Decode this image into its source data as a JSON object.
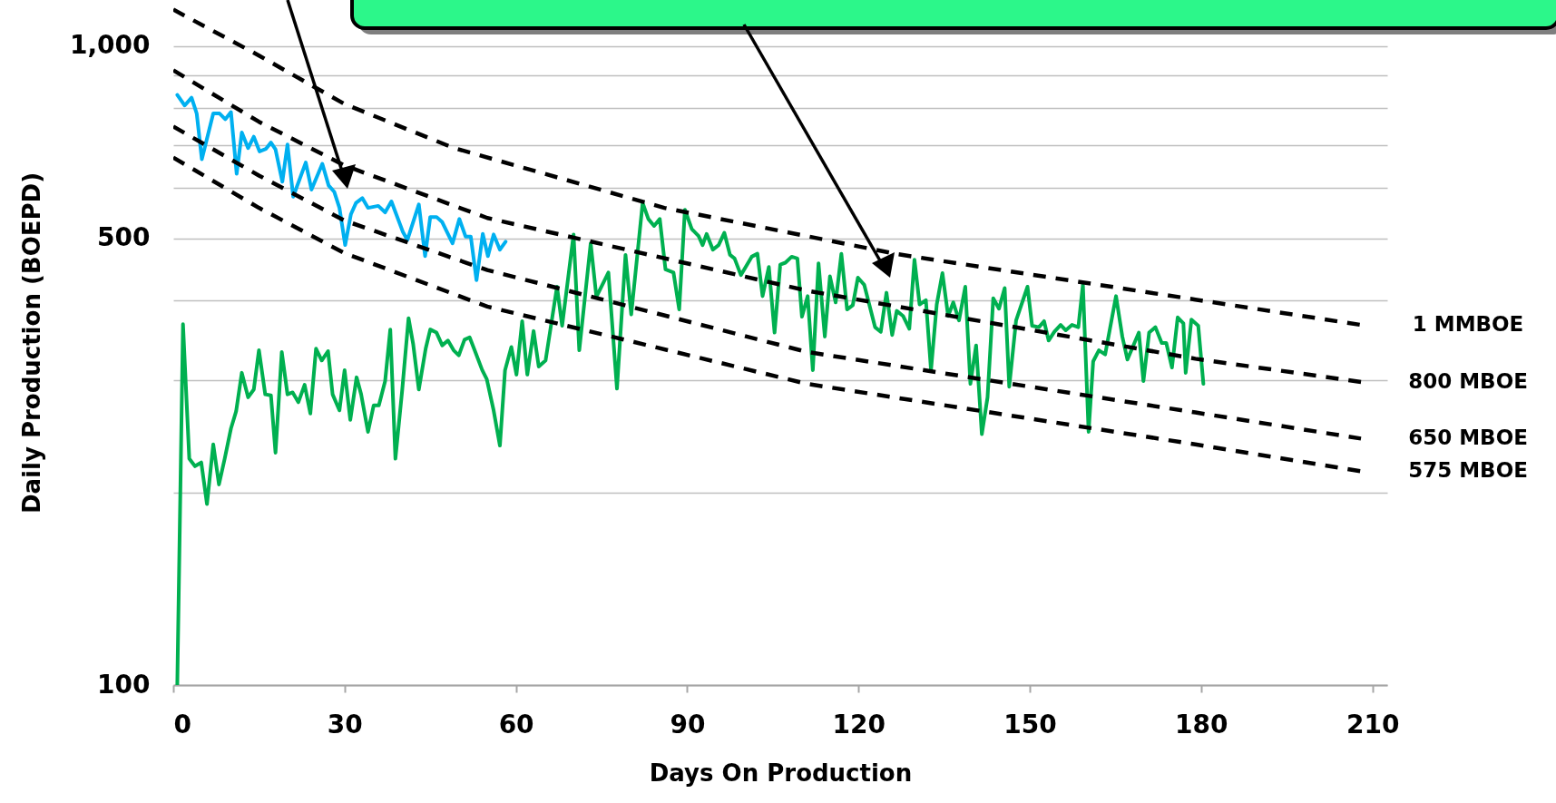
{
  "chart_data": {
    "type": "line",
    "xlabel": "Days On Production",
    "ylabel": "Daily Production (BOEPD)",
    "log": true,
    "grid": "y",
    "marker": "none",
    "xlim": [
      0,
      212.6
    ],
    "xticks": [
      0,
      30,
      60,
      90,
      120,
      150,
      180,
      210
    ],
    "ylim": [
      100,
      1180
    ],
    "yticks": [
      100,
      {
        "value": 200,
        "label": null
      },
      {
        "value": 300,
        "label": null
      },
      {
        "value": 400,
        "label": null
      },
      500,
      {
        "value": 600,
        "label": null
      },
      {
        "value": 700,
        "label": null
      },
      {
        "value": 800,
        "label": null
      },
      {
        "value": 900,
        "label": null
      },
      {
        "value": 1000,
        "label": "1,000"
      }
    ],
    "series": [
      {
        "color": "#00b050",
        "x": [
          0.7,
          1.7,
          2.8,
          3.8,
          4.9,
          5.9,
          7,
          8,
          9,
          10.1,
          11,
          12,
          13.1,
          14.1,
          15,
          16.1,
          17.1,
          17.9,
          19,
          20,
          20.9,
          21.9,
          23,
          24,
          25,
          26,
          27.1,
          27.9,
          29.1,
          30,
          31,
          32.1,
          32.9,
          34.1,
          35.1,
          36,
          37.1,
          38,
          38.9,
          40.1,
          41.2,
          42,
          43,
          44.2,
          45,
          46.1,
          47.1,
          48.1,
          49.1,
          50,
          51,
          51.9,
          52.9,
          54.1,
          54.9,
          56.1,
          57.2,
          58.1,
          59.2,
          60.1,
          61.1,
          62,
          63.1,
          64,
          65.2,
          67.2,
          68.1,
          70.1,
          71.1,
          73.1,
          74.1,
          76.2,
          77.7,
          79.2,
          80.2,
          82.2,
          83.2,
          84.2,
          85.2,
          86.2,
          87.6,
          88.6,
          89.6,
          90.8,
          92,
          92.7,
          93.4,
          94.5,
          95.5,
          96.5,
          97.5,
          98.3,
          99.4,
          101.3,
          102.3,
          103.2,
          104.3,
          105.3,
          106.3,
          107.2,
          108.3,
          109.3,
          110.1,
          111.1,
          112,
          113,
          114.1,
          115,
          116,
          117,
          118,
          119,
          119.9,
          121,
          122.9,
          123.9,
          124.9,
          125.9,
          126.7,
          127.8,
          128.9,
          129.8,
          130.7,
          131.8,
          132.7,
          133.7,
          134.7,
          135.7,
          136.6,
          137.6,
          138.7,
          139.6,
          140.6,
          141.6,
          142.6,
          143.6,
          144.6,
          145.6,
          146.4,
          147.6,
          149.6,
          150.4,
          151.6,
          152.5,
          153.3,
          154.3,
          155.4,
          156.3,
          157.4,
          158.5,
          159.3,
          160.3,
          161.1,
          162.1,
          163.2,
          165.1,
          166.2,
          167.1,
          169.1,
          169.9,
          170.9,
          172,
          173.1,
          173.9,
          174.9,
          175.9,
          176.9,
          177.3,
          178.3,
          179.5,
          180.4
        ],
        "values": [
          100,
          367,
          226,
          220,
          223,
          192,
          238,
          206,
          226,
          252,
          268,
          308,
          282,
          290,
          334,
          285,
          284,
          231,
          332,
          285,
          287,
          277,
          295,
          266,
          336,
          322,
          333,
          285,
          269,
          311,
          260,
          303,
          285,
          249,
          274,
          274,
          299,
          360,
          226,
          290,
          375,
          342,
          290,
          336,
          360,
          356,
          340,
          346,
          334,
          328,
          347,
          350,
          332,
          311,
          301,
          269,
          237,
          311,
          338,
          306,
          371,
          306,
          358,
          315,
          322,
          420,
          365,
          507,
          334,
          491,
          405,
          442,
          291,
          471,
          380,
          568,
          536,
          523,
          536,
          447,
          442,
          387,
          554,
          517,
          504,
          488,
          508,
          480,
          488,
          510,
          471,
          465,
          438,
          468,
          473,
          406,
          451,
          356,
          455,
          458,
          468,
          465,
          377,
          406,
          311,
          457,
          351,
          436,
          397,
          473,
          387,
          393,
          434,
          423,
          363,
          357,
          411,
          353,
          385,
          378,
          361,
          463,
          394,
          400,
          311,
          394,
          441,
          378,
          397,
          372,
          420,
          296,
          340,
          247,
          282,
          403,
          388,
          418,
          293,
          372,
          420,
          365,
          363,
          371,
          346,
          357,
          366,
          359,
          366,
          363,
          423,
          249,
          321,
          334,
          329,
          406,
          351,
          323,
          356,
          299,
          356,
          363,
          343,
          343,
          314,
          376,
          368,
          308,
          373,
          365,
          296
        ]
      },
      {
        "color": "#00b0f0",
        "x": [
          0.7,
          2,
          3.2,
          4.1,
          5,
          7,
          8.1,
          9.1,
          10.1,
          11.1,
          12,
          13.1,
          14.1,
          15.1,
          16.2,
          17.1,
          17.9,
          19.1,
          20,
          21,
          23.2,
          24.2,
          26.1,
          27.2,
          28.2,
          29.1,
          30.1,
          31.1,
          32,
          33.1,
          34.1,
          35.9,
          37.1,
          38.2,
          40.2,
          41,
          43,
          44.1,
          45,
          46.1,
          47.1,
          48.9,
          50.1,
          51.2,
          52.1,
          53.1,
          54.2,
          55.1,
          56.1,
          57.2,
          58.2
        ],
        "values": [
          838,
          807,
          830,
          784,
          665,
          784,
          784,
          768,
          788,
          631,
          732,
          692,
          721,
          684,
          690,
          706,
          689,
          613,
          701,
          581,
          657,
          596,
          654,
          605,
          591,
          558,
          488,
          545,
          568,
          578,
          558,
          562,
          549,
          571,
          512,
          497,
          565,
          469,
          540,
          540,
          530,
          491,
          536,
          503,
          503,
          430,
          508,
          469,
          507,
          480,
          494
        ]
      },
      {
        "name": "1 MMBOE",
        "color": "#000000",
        "line_style": "dashed",
        "x": [
          0,
          15,
          30,
          49,
          86,
          127,
          179,
          208
        ],
        "values": [
          1140,
          966,
          811,
          693,
          558,
          472,
          401,
          366
        ]
      },
      {
        "name": "800 MBOE",
        "color": "#000000",
        "line_style": "dashed",
        "x": [
          0,
          15,
          30,
          55,
          111,
          179,
          208
        ],
        "values": [
          916,
          761,
          650,
          538,
          414,
          324,
          298
        ]
      },
      {
        "name": "650 MBOE",
        "color": "#000000",
        "line_style": "dashed",
        "x": [
          0,
          15,
          30,
          55,
          111,
          179,
          208
        ],
        "values": [
          748,
          627,
          533,
          446,
          332,
          267,
          243
        ]
      },
      {
        "name": "575 MBOE",
        "color": "#000000",
        "line_style": "dashed",
        "x": [
          0,
          15,
          30,
          55,
          111,
          179,
          208
        ],
        "values": [
          669,
          558,
          474,
          391,
          296,
          238,
          216
        ]
      }
    ]
  }
}
